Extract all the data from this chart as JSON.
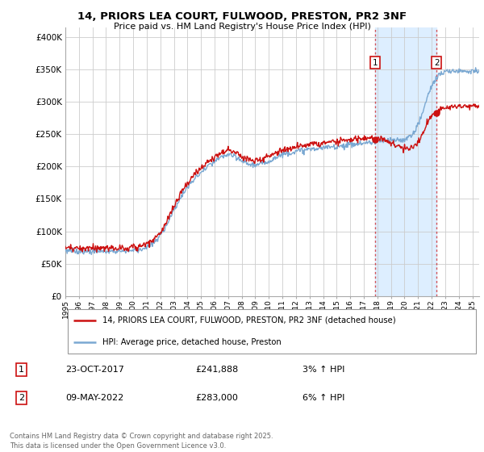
{
  "title": "14, PRIORS LEA COURT, FULWOOD, PRESTON, PR2 3NF",
  "subtitle": "Price paid vs. HM Land Registry's House Price Index (HPI)",
  "ylabel_ticks": [
    "£0",
    "£50K",
    "£100K",
    "£150K",
    "£200K",
    "£250K",
    "£300K",
    "£350K",
    "£400K"
  ],
  "ytick_values": [
    0,
    50000,
    100000,
    150000,
    200000,
    250000,
    300000,
    350000,
    400000
  ],
  "ylim": [
    0,
    415000
  ],
  "xlim_start": 1995.0,
  "xlim_end": 2025.5,
  "xtick_years": [
    1995,
    1996,
    1997,
    1998,
    1999,
    2000,
    2001,
    2002,
    2003,
    2004,
    2005,
    2006,
    2007,
    2008,
    2009,
    2010,
    2011,
    2012,
    2013,
    2014,
    2015,
    2016,
    2017,
    2018,
    2019,
    2020,
    2021,
    2022,
    2023,
    2024,
    2025
  ],
  "hpi_color": "#7aa8d2",
  "price_color": "#cc1111",
  "vertical_line_color": "#cc1111",
  "shade_color": "#ddeeff",
  "marker1_year": 2017.81,
  "marker2_year": 2022.36,
  "legend_line1": "14, PRIORS LEA COURT, FULWOOD, PRESTON, PR2 3NF (detached house)",
  "legend_line2": "HPI: Average price, detached house, Preston",
  "annotation1_date": "23-OCT-2017",
  "annotation1_price": "£241,888",
  "annotation1_hpi": "3% ↑ HPI",
  "annotation2_date": "09-MAY-2022",
  "annotation2_price": "£283,000",
  "annotation2_hpi": "6% ↑ HPI",
  "footer": "Contains HM Land Registry data © Crown copyright and database right 2025.\nThis data is licensed under the Open Government Licence v3.0."
}
